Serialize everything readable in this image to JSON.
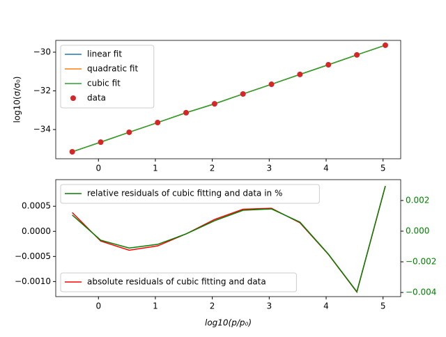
{
  "chart_data": [
    {
      "type": "line",
      "xlabel": "log10(p/p₀)",
      "ylabel": "log10(σ/σ₀)",
      "x": [
        -0.46,
        0.04,
        0.54,
        1.04,
        1.54,
        2.04,
        2.54,
        3.04,
        3.54,
        4.04,
        4.54,
        5.04
      ],
      "series": [
        {
          "name": "linear fit",
          "color": "#1f77b4",
          "values": [
            -35.15,
            -34.65,
            -34.14,
            -33.64,
            -33.13,
            -32.67,
            -32.16,
            -31.66,
            -31.15,
            -30.65,
            -30.14,
            -29.64
          ]
        },
        {
          "name": "quadratic fit",
          "color": "#ff7f0e",
          "values": [
            -35.15,
            -34.65,
            -34.14,
            -33.64,
            -33.13,
            -32.67,
            -32.16,
            -31.66,
            -31.15,
            -30.65,
            -30.14,
            -29.64
          ]
        },
        {
          "name": "cubic fit",
          "color": "#2ca02c",
          "values": [
            -35.15,
            -34.65,
            -34.14,
            -33.64,
            -33.13,
            -32.67,
            -32.16,
            -31.66,
            -31.15,
            -30.65,
            -30.14,
            -29.64
          ]
        },
        {
          "name": "data",
          "color": "#d62728",
          "style": "markers",
          "values": [
            -35.15,
            -34.65,
            -34.14,
            -33.64,
            -33.13,
            -32.67,
            -32.16,
            -31.66,
            -31.15,
            -30.65,
            -30.14,
            -29.64
          ]
        }
      ],
      "legend": "upper left",
      "xlim": [
        -0.75,
        5.31
      ],
      "xticks": [
        0,
        1,
        2,
        3,
        4,
        5
      ],
      "ylim": [
        -35.51,
        -29.39
      ],
      "yticks": [
        {
          "value": -34,
          "label": "−34"
        },
        {
          "value": -32,
          "label": "−32"
        },
        {
          "value": -30,
          "label": "−30"
        }
      ]
    },
    {
      "type": "line",
      "xlabel": "log10(p/p₀)",
      "x": [
        -0.46,
        0.04,
        0.54,
        1.04,
        1.54,
        2.04,
        2.54,
        3.04,
        3.54,
        4.04,
        4.54,
        5.04
      ],
      "series": [
        {
          "name": "absolute residuals of cubic fitting and data",
          "color": "#ff0000",
          "legend": "lower left",
          "values": [
            0.000375,
            -0.000194,
            -0.000375,
            -0.00029,
            -5e-05,
            0.000236,
            0.00044,
            0.00046,
            0.00017,
            -0.00046,
            -0.00121,
            0.0009
          ]
        },
        {
          "name": "relative residuals of cubic fitting and data in %",
          "color": "#008000",
          "legend": "upper left",
          "axis": "y2",
          "values": [
            0.00105,
            -0.00059,
            -0.0011,
            -0.00086,
            -0.00018,
            0.00068,
            0.00136,
            0.00145,
            0.00059,
            -0.0015,
            -0.00395,
            0.00295
          ]
        }
      ],
      "xlim": [
        -0.75,
        5.31
      ],
      "xticks": [
        0,
        1,
        2,
        3,
        4,
        5
      ],
      "ylim": [
        -0.0013,
        0.00103
      ],
      "yticks": [
        {
          "value": -0.001,
          "label": "−0.0010"
        },
        {
          "value": -0.0005,
          "label": "−0.0005"
        },
        {
          "value": 0,
          "label": "0.0000"
        },
        0.0005
      ],
      "y2lim": [
        -0.00427,
        0.00336
      ],
      "y2ticks": [
        {
          "value": -0.004,
          "label": "−0.004"
        },
        {
          "value": -0.002,
          "label": "−0.002"
        },
        {
          "value": 0,
          "label": "0.000"
        },
        0.002
      ],
      "y2color": "#008000"
    }
  ]
}
